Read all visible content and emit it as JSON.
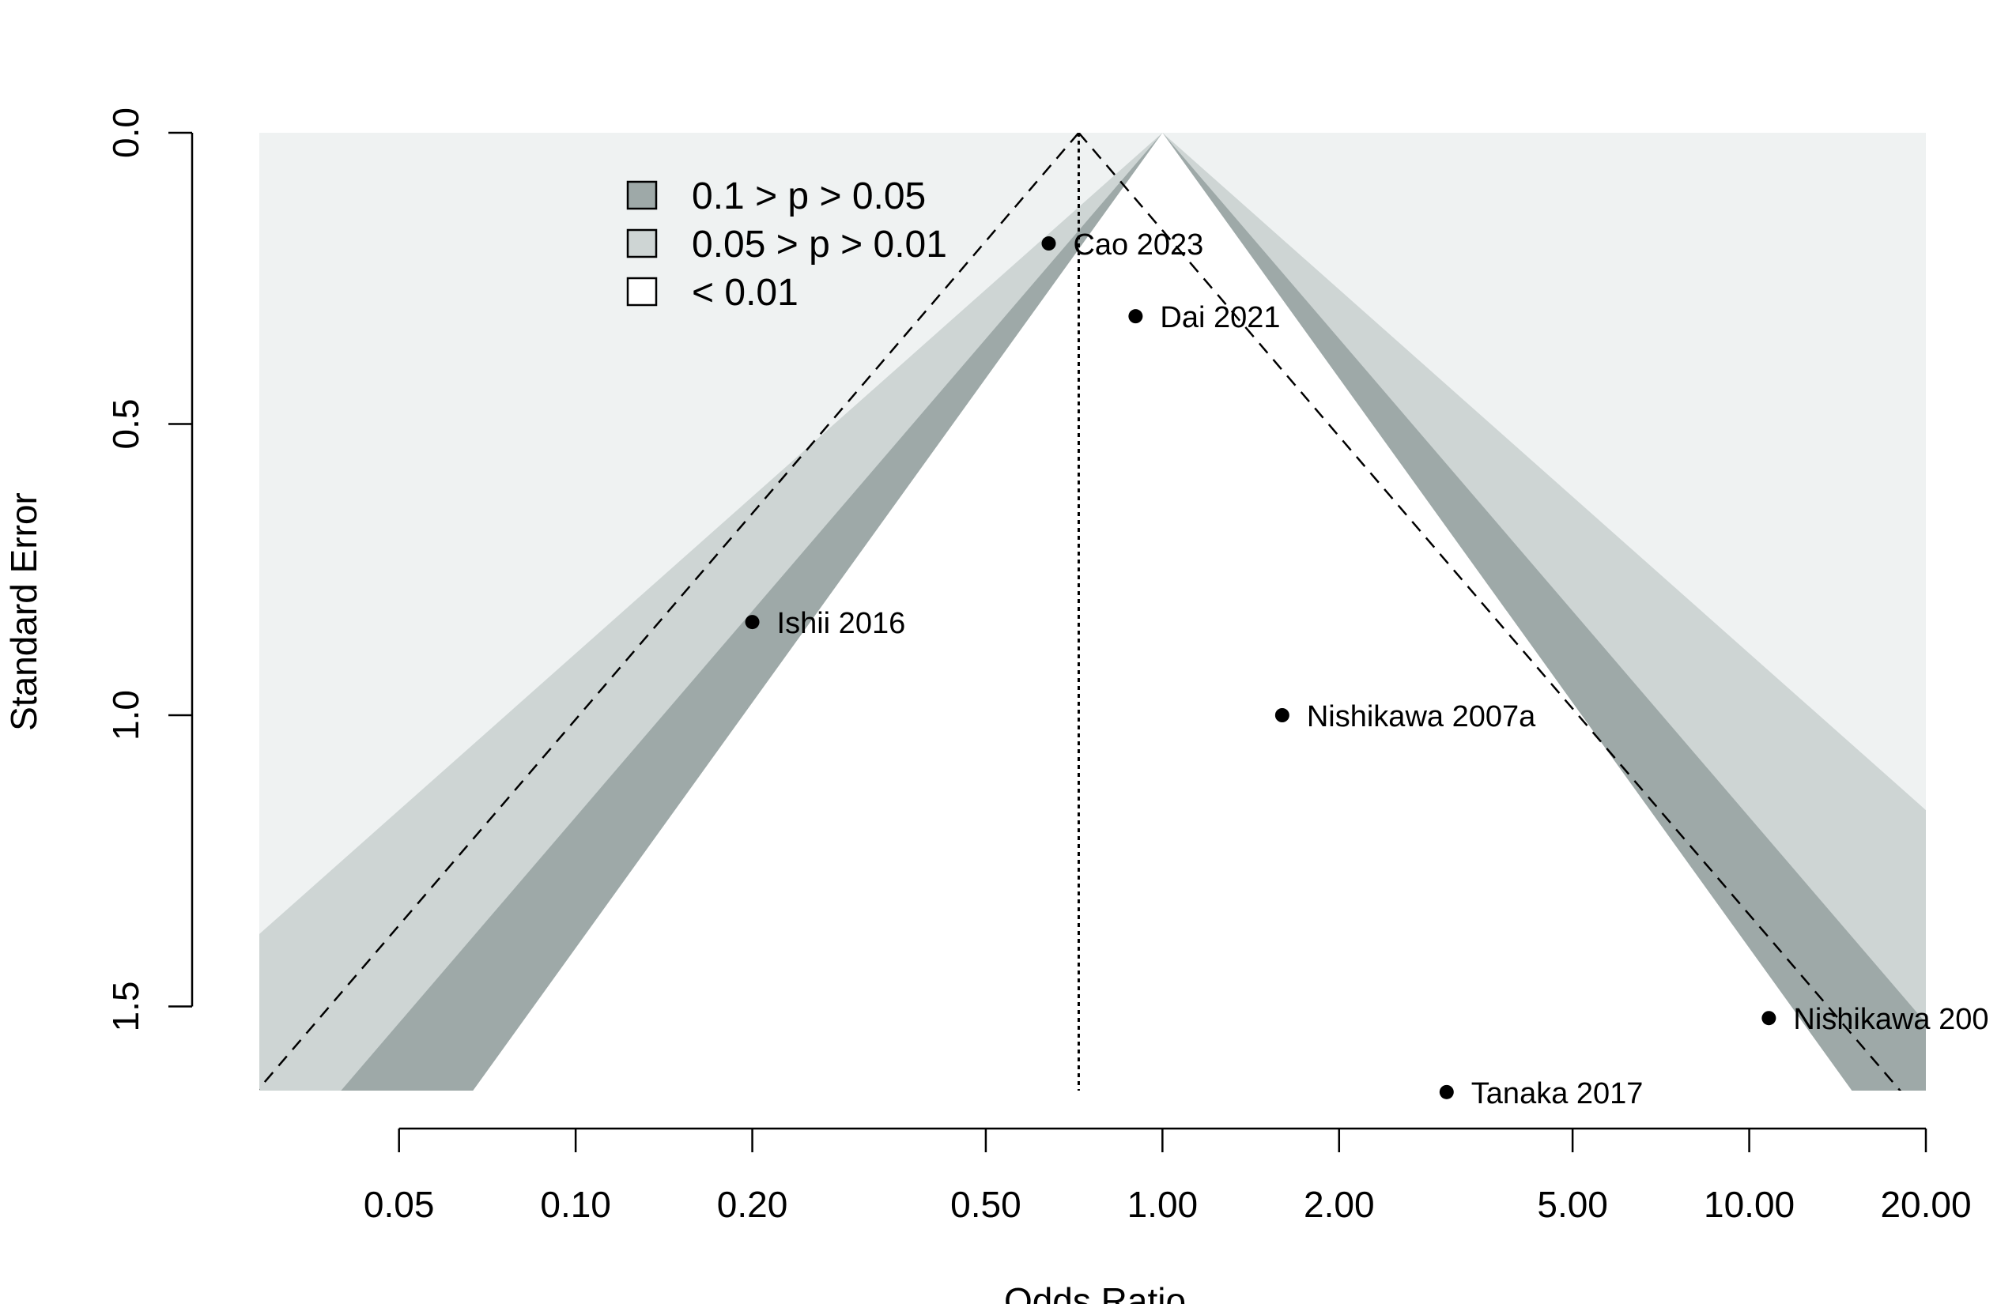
{
  "chart_data": {
    "type": "scatter",
    "subtype": "contour-enhanced funnel plot",
    "xlabel": "Odds Ratio",
    "ylabel": "Standard Error",
    "x_scale": "log",
    "y_reversed": true,
    "xlim": [
      0.0289,
      20.0
    ],
    "ylim": [
      0.0,
      1.647
    ],
    "x_ticks": [
      0.05,
      0.1,
      0.2,
      0.5,
      1.0,
      2.0,
      5.0,
      10.0,
      20.0
    ],
    "x_tick_labels": [
      "0.05",
      "0.10",
      "0.20",
      "0.50",
      "1.00",
      "2.00",
      "5.00",
      "10.00",
      "20.00"
    ],
    "y_ticks": [
      0.0,
      0.5,
      1.0,
      1.5
    ],
    "y_tick_labels": [
      "0.0",
      "0.5",
      "1.0",
      "1.5"
    ],
    "grid": false,
    "legend_position": "top-left",
    "legend": [
      {
        "label": "0.1 > p > 0.05",
        "color": "#9ea9a8"
      },
      {
        "label": "0.05 > p > 0.01",
        "color": "#ced5d4"
      },
      {
        "label": "< 0.01",
        "color": "#ffffff"
      }
    ],
    "background_color": "#eff2f2",
    "summary_estimate": 0.72,
    "contour_center": 1.0,
    "points": [
      {
        "label": "Cao 2023",
        "x": 0.64,
        "y": 0.19
      },
      {
        "label": "Dai 2021",
        "x": 0.9,
        "y": 0.315
      },
      {
        "label": "Ishii 2016",
        "x": 0.2,
        "y": 0.84
      },
      {
        "label": "Nishikawa 2007a",
        "x": 1.6,
        "y": 1.0
      },
      {
        "label": "Nishikawa 200",
        "x": 10.8,
        "y": 1.52
      },
      {
        "label": "Tanaka 2017",
        "x": 3.05,
        "y": 1.647
      }
    ]
  }
}
